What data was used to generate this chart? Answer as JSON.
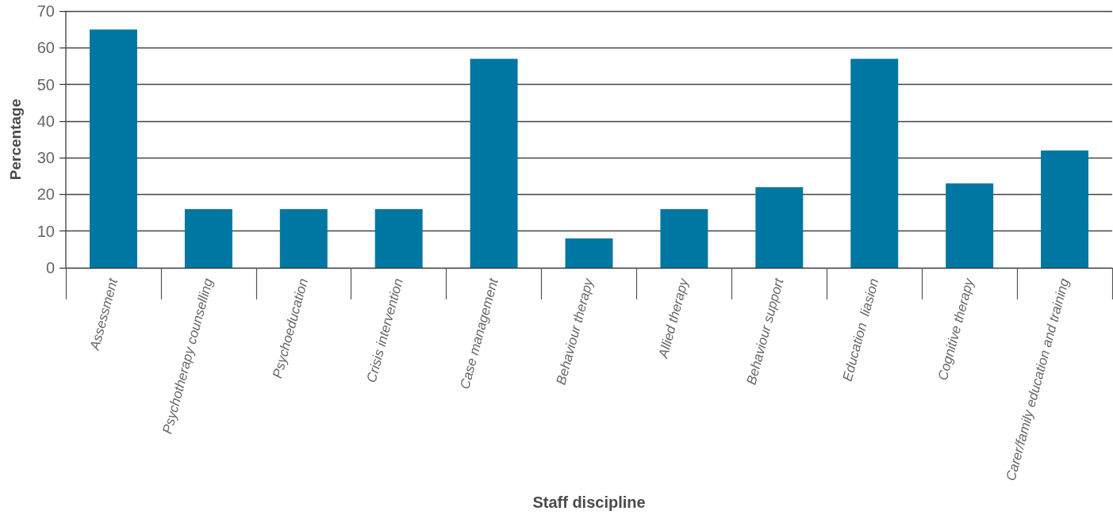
{
  "chart_data": {
    "type": "bar",
    "xlabel": "Staff discipline",
    "ylabel": "Percentage",
    "categories": [
      "Assessment",
      "Psychotherapy counselling",
      "Psychoeducation",
      "Crisis intervention",
      "Case management",
      "Behaviour therapy",
      "Allied therapy",
      "Behaviour support",
      "Education  liasion",
      "Cognitive therapy",
      "Carer/family education and training"
    ],
    "values": [
      65,
      16,
      16,
      16,
      57,
      8,
      16,
      22,
      57,
      23,
      32
    ],
    "color": "#0077a2",
    "ylim": [
      0,
      70
    ],
    "yticks": [
      0,
      10,
      20,
      30,
      40,
      50,
      60,
      70
    ],
    "grid": "y"
  }
}
